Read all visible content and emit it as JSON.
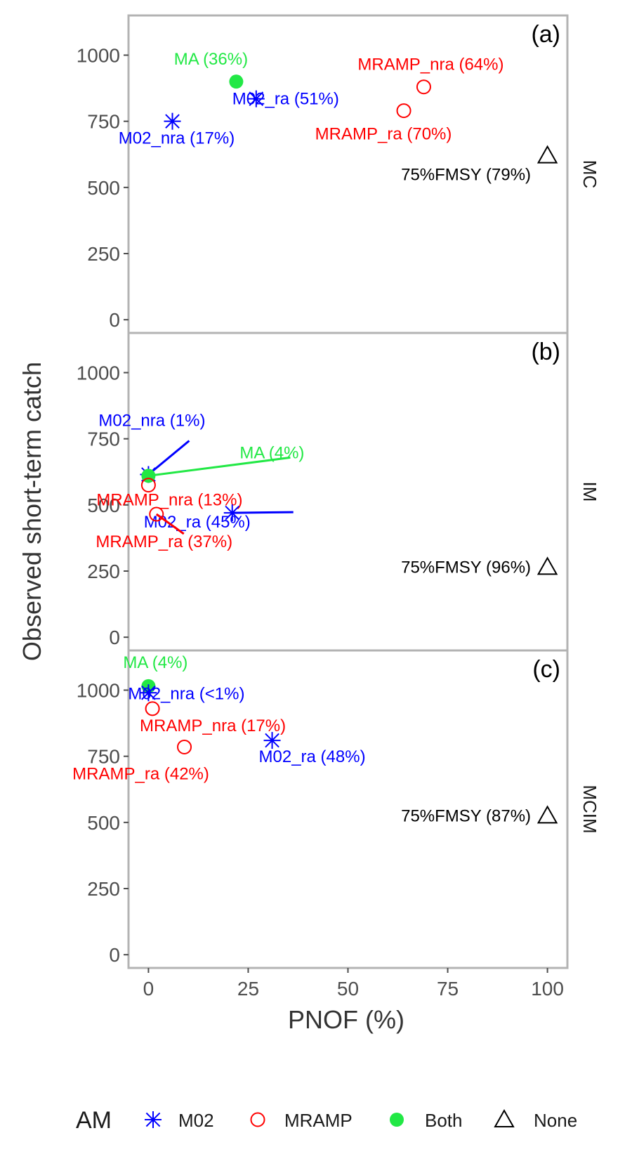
{
  "chart_data": {
    "type": "scatter",
    "xlabel": "PNOF (%)",
    "ylabel": "Observed short-term catch",
    "xlim": [
      -5,
      105
    ],
    "ylim": [
      -50,
      1150
    ],
    "x_ticks": [
      0,
      25,
      50,
      75,
      100
    ],
    "y_ticks": [
      0,
      250,
      500,
      750,
      1000
    ],
    "grid": false,
    "legend": {
      "position": "bottom",
      "title": "AM",
      "entries": [
        {
          "label": "M02",
          "shape": "asterisk",
          "color": "#0000ff"
        },
        {
          "label": "MRAMP",
          "shape": "open-circle",
          "color": "#ff0000"
        },
        {
          "label": "Both",
          "shape": "filled-circle",
          "color": "#22e845"
        },
        {
          "label": "None",
          "shape": "open-triangle",
          "color": "#000000"
        }
      ]
    },
    "panels": [
      {
        "tag": "(a)",
        "strip": "MC",
        "points": [
          {
            "label": "MA (36%)",
            "am": "Both",
            "x": 22,
            "y": 900
          },
          {
            "label": "M02_ra (51%)",
            "am": "M02",
            "x": 27,
            "y": 835
          },
          {
            "label": "M02_nra (17%)",
            "am": "M02",
            "x": 6,
            "y": 750
          },
          {
            "label": "MRAMP_nra (64%)",
            "am": "MRAMP",
            "x": 69,
            "y": 880
          },
          {
            "label": "MRAMP_ra (70%)",
            "am": "MRAMP",
            "x": 64,
            "y": 790
          },
          {
            "label": "75%FMSY (79%)",
            "am": "None",
            "x": 100,
            "y": 620
          }
        ]
      },
      {
        "tag": "(b)",
        "strip": "IM",
        "points": [
          {
            "label": "M02_nra (1%)",
            "am": "M02",
            "x": 0,
            "y": 615
          },
          {
            "label": "MA (4%)",
            "am": "Both",
            "x": 0,
            "y": 610
          },
          {
            "label": "MRAMP_nra (13%)",
            "am": "MRAMP",
            "x": 0,
            "y": 575
          },
          {
            "label": "M02_ra (45%)",
            "am": "M02",
            "x": 21,
            "y": 470
          },
          {
            "label": "MRAMP_ra (37%)",
            "am": "MRAMP",
            "x": 2,
            "y": 465
          },
          {
            "label": "75%FMSY (96%)",
            "am": "None",
            "x": 100,
            "y": 265
          }
        ]
      },
      {
        "tag": "(c)",
        "strip": "MCIM",
        "points": [
          {
            "label": "MA (4%)",
            "am": "Both",
            "x": 0,
            "y": 1015
          },
          {
            "label": "M02_nra (<1%)",
            "am": "M02",
            "x": 0,
            "y": 990
          },
          {
            "label": "MRAMP_nra (17%)",
            "am": "MRAMP",
            "x": 1,
            "y": 930
          },
          {
            "label": "MRAMP_ra (42%)",
            "am": "MRAMP",
            "x": 9,
            "y": 785
          },
          {
            "label": "M02_ra (48%)",
            "am": "M02",
            "x": 31,
            "y": 810
          },
          {
            "label": "75%FMSY (87%)",
            "am": "None",
            "x": 100,
            "y": 525
          }
        ]
      }
    ]
  },
  "colors": {
    "M02": "#0000ff",
    "MRAMP": "#ff0000",
    "Both": "#22e845",
    "None": "#000000",
    "frame": "#b3b3b3",
    "axis_text": "#4d4d4d",
    "title_text": "#333333"
  }
}
